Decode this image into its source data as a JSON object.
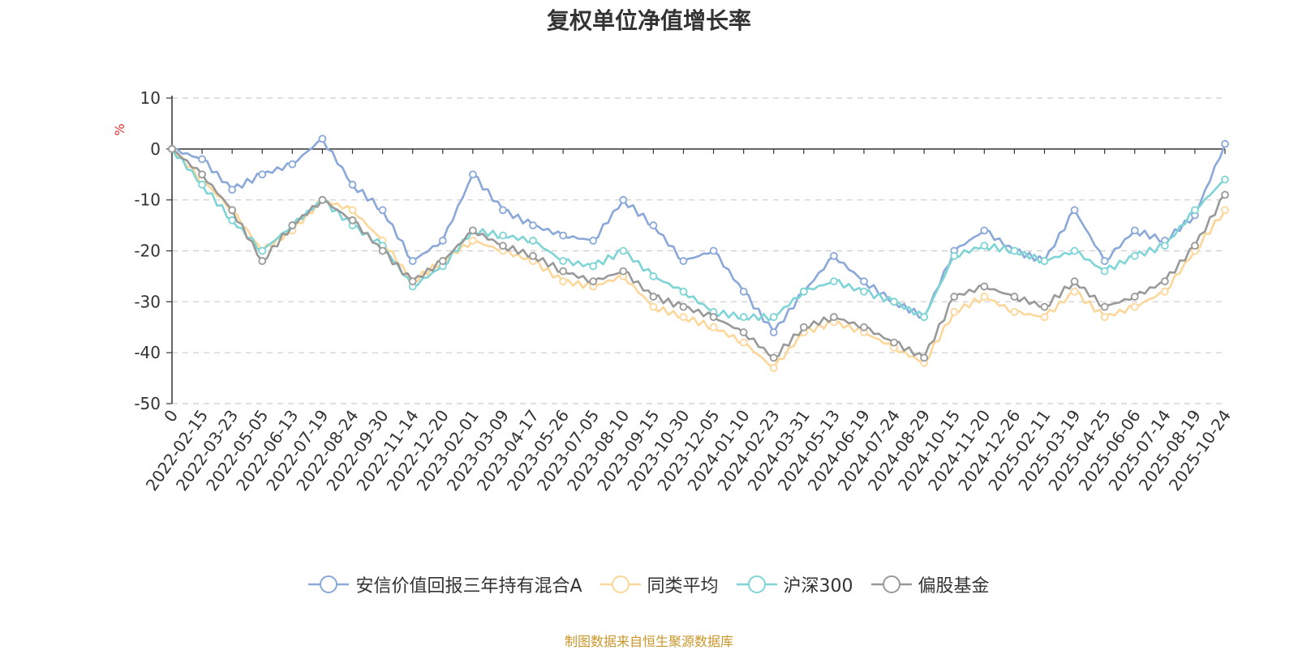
{
  "chart_data": {
    "type": "line",
    "title": "复权单位净值增长率",
    "ylabel": "%",
    "xlabel": "",
    "ylim": [
      -50,
      10
    ],
    "yticks": [
      10,
      0,
      -10,
      -20,
      -30,
      -40,
      -50
    ],
    "grid": true,
    "legend_position": "bottom",
    "x": [
      "0",
      "2022-02-15",
      "2022-03-23",
      "2022-05-05",
      "2022-06-13",
      "2022-07-19",
      "2022-08-24",
      "2022-09-30",
      "2022-11-14",
      "2022-12-20",
      "2023-02-01",
      "2023-03-09",
      "2023-04-17",
      "2023-05-26",
      "2023-07-05",
      "2023-08-10",
      "2023-09-15",
      "2023-10-30",
      "2023-12-05",
      "2024-01-10",
      "2024-02-23",
      "2024-03-31",
      "2024-05-13",
      "2024-06-19",
      "2024-07-24",
      "2024-08-29",
      "2024-10-15",
      "2024-11-20",
      "2024-12-26",
      "2025-02-11",
      "2025-03-19",
      "2025-04-25",
      "2025-06-06",
      "2025-07-14",
      "2025-08-19",
      "2025-10-24"
    ],
    "series": [
      {
        "name": "安信价值回报三年持有混合A",
        "color": "#8aa8d8",
        "values": [
          0,
          -2,
          -8,
          -5,
          -3,
          2,
          -7,
          -12,
          -22,
          -18,
          -5,
          -12,
          -15,
          -17,
          -18,
          -10,
          -15,
          -22,
          -20,
          -28,
          -36,
          -28,
          -21,
          -26,
          -30,
          -33,
          -20,
          -16,
          -20,
          -22,
          -12,
          -22,
          -16,
          -18,
          -13,
          1
        ]
      },
      {
        "name": "同类平均",
        "color": "#fdd79a",
        "values": [
          0,
          -6,
          -12,
          -20,
          -16,
          -10,
          -12,
          -18,
          -26,
          -22,
          -18,
          -20,
          -22,
          -26,
          -27,
          -25,
          -31,
          -33,
          -35,
          -38,
          -43,
          -36,
          -34,
          -36,
          -39,
          -42,
          -32,
          -29,
          -32,
          -33,
          -28,
          -33,
          -31,
          -28,
          -20,
          -12
        ]
      },
      {
        "name": "沪深300",
        "color": "#7fd4d6",
        "values": [
          0,
          -7,
          -14,
          -20,
          -15,
          -10,
          -15,
          -19,
          -27,
          -23,
          -16,
          -17,
          -18,
          -22,
          -23,
          -20,
          -25,
          -28,
          -32,
          -33,
          -33,
          -28,
          -26,
          -28,
          -30,
          -33,
          -21,
          -19,
          -20,
          -22,
          -20,
          -24,
          -21,
          -19,
          -12,
          -6
        ]
      },
      {
        "name": "偏股基金",
        "color": "#999999",
        "values": [
          0,
          -5,
          -12,
          -22,
          -15,
          -10,
          -14,
          -20,
          -26,
          -22,
          -16,
          -19,
          -21,
          -24,
          -26,
          -24,
          -29,
          -31,
          -33,
          -36,
          -41,
          -35,
          -33,
          -35,
          -38,
          -41,
          -29,
          -27,
          -29,
          -31,
          -26,
          -31,
          -29,
          -26,
          -19,
          -9
        ]
      }
    ]
  },
  "source_note": "制图数据来自恒生聚源数据库"
}
